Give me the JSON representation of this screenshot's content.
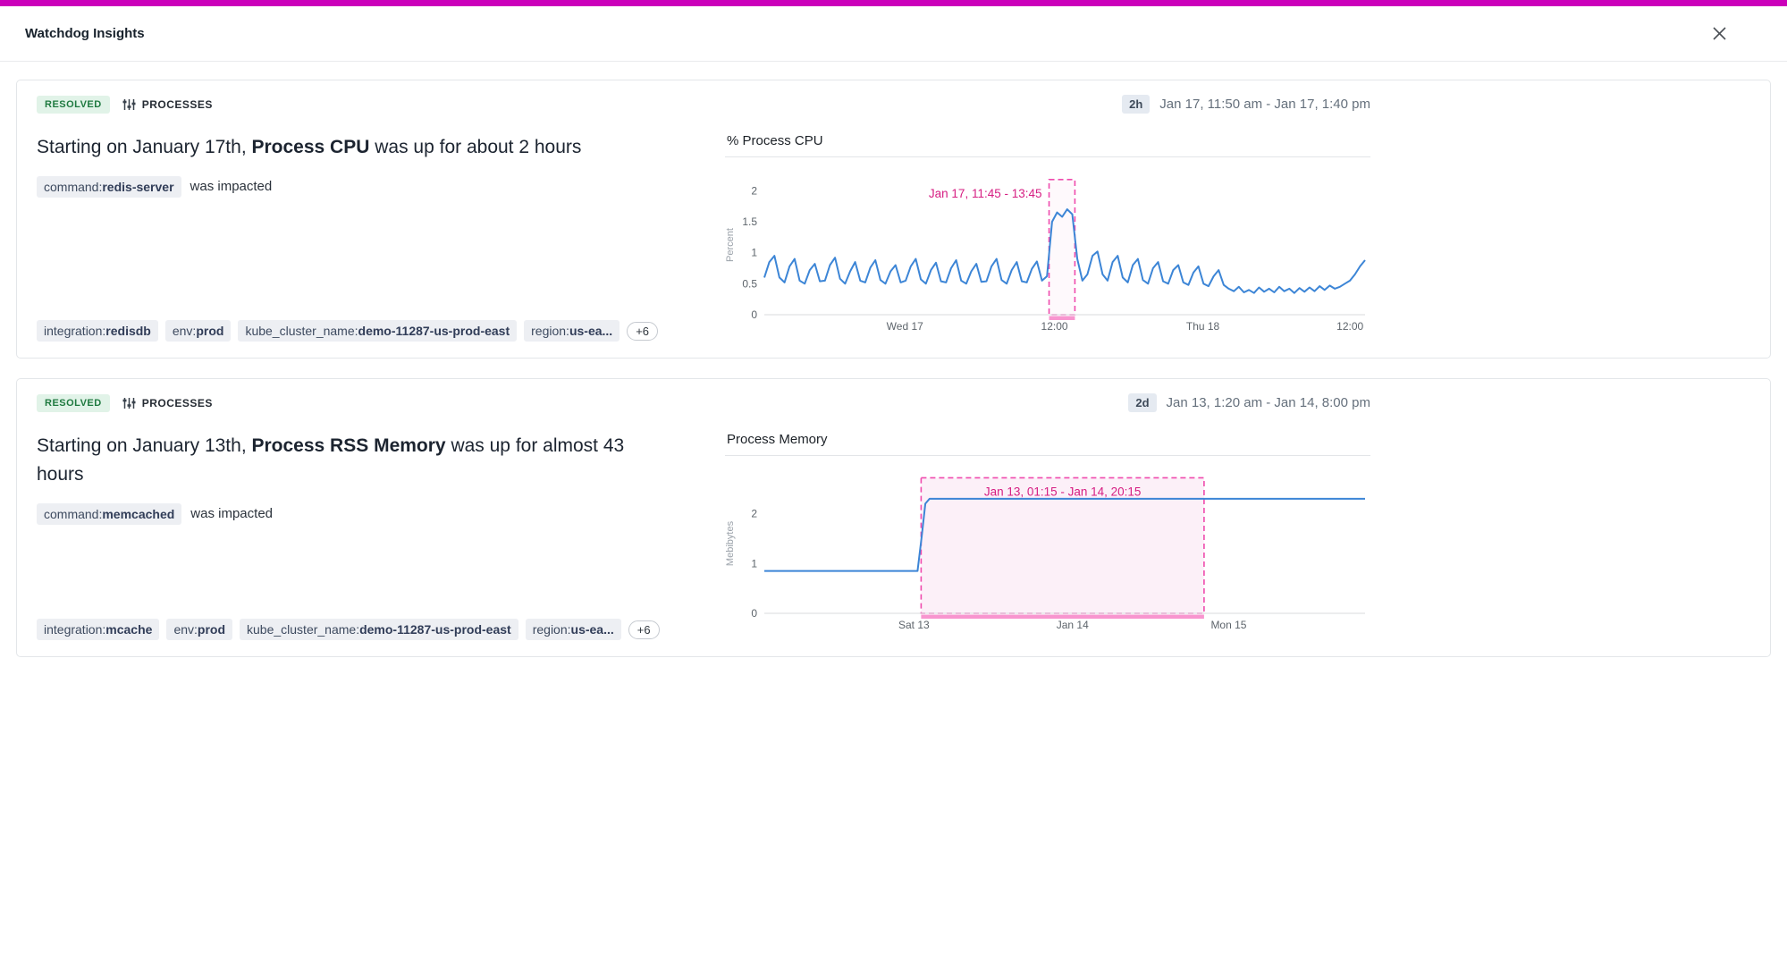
{
  "colors": {
    "accent_bar": "#cb00ba",
    "line_blue": "#3c85d6",
    "pink_stroke": "#ef4aad",
    "pink_text": "#d61d82",
    "pink_bar": "#f895cf",
    "resolved_green": "#1f7a40"
  },
  "header": {
    "title": "Watchdog Insights"
  },
  "cards": [
    {
      "status": "RESOLVED",
      "category": "PROCESSES",
      "duration": "2h",
      "time_range": "Jan 17, 11:50 am - Jan 17, 1:40 pm",
      "title": {
        "prefix": "Starting on January 17th, ",
        "emphasis": "Process CPU",
        "suffix": " was up for about 2 hours"
      },
      "impacted": {
        "tag_key": "command:",
        "tag_value": "redis-server",
        "text": "was impacted"
      },
      "tags": [
        {
          "key": "integration:",
          "value": "redisdb"
        },
        {
          "key": "env:",
          "value": "prod"
        },
        {
          "key": "kube_cluster_name:",
          "value": "demo-11287-us-prod-east"
        },
        {
          "key": "region:",
          "value": "us-ea..."
        }
      ],
      "more_count": "+6",
      "chart_data": {
        "type": "line",
        "title": "% Process CPU",
        "ylabel": "Percent",
        "ylim": [
          0,
          2.25
        ],
        "yticks": [
          0,
          0.5,
          1,
          1.5,
          2
        ],
        "xticks": [
          {
            "pos": 0.234,
            "label": "Wed 17"
          },
          {
            "pos": 0.483,
            "label": "12:00"
          },
          {
            "pos": 0.73,
            "label": "Thu 18"
          },
          {
            "pos": 0.975,
            "label": "12:00"
          }
        ],
        "annotation": {
          "label": "Jan 17, 11:45 - 13:45",
          "x0": 0.474,
          "x1": 0.517,
          "top": 2.18,
          "align": "end",
          "fill": "rgba(252,233,244,0.25)",
          "stroke": "#ef4aad",
          "bar": "#f895cf"
        },
        "series": {
          "color": "#3c85d6",
          "y": [
            0.6,
            0.85,
            0.95,
            0.6,
            0.52,
            0.78,
            0.9,
            0.55,
            0.5,
            0.72,
            0.82,
            0.54,
            0.55,
            0.8,
            0.92,
            0.58,
            0.5,
            0.7,
            0.85,
            0.55,
            0.52,
            0.76,
            0.88,
            0.56,
            0.5,
            0.7,
            0.8,
            0.52,
            0.55,
            0.78,
            0.9,
            0.57,
            0.5,
            0.72,
            0.84,
            0.54,
            0.52,
            0.75,
            0.88,
            0.55,
            0.5,
            0.7,
            0.82,
            0.53,
            0.54,
            0.78,
            0.9,
            0.56,
            0.5,
            0.72,
            0.85,
            0.54,
            0.52,
            0.74,
            0.86,
            0.55,
            0.62,
            1.5,
            1.65,
            1.58,
            1.7,
            1.62,
            0.9,
            0.55,
            0.65,
            0.95,
            1.02,
            0.65,
            0.55,
            0.85,
            0.95,
            0.6,
            0.52,
            0.8,
            0.9,
            0.56,
            0.5,
            0.75,
            0.85,
            0.54,
            0.5,
            0.72,
            0.8,
            0.52,
            0.48,
            0.68,
            0.78,
            0.5,
            0.46,
            0.62,
            0.72,
            0.48,
            0.42,
            0.38,
            0.45,
            0.36,
            0.4,
            0.35,
            0.44,
            0.37,
            0.42,
            0.36,
            0.45,
            0.38,
            0.42,
            0.35,
            0.43,
            0.37,
            0.44,
            0.38,
            0.46,
            0.4,
            0.47,
            0.42,
            0.45,
            0.5,
            0.55,
            0.65,
            0.78,
            0.88
          ]
        }
      }
    },
    {
      "status": "RESOLVED",
      "category": "PROCESSES",
      "duration": "2d",
      "time_range": "Jan 13, 1:20 am - Jan 14, 8:00 pm",
      "title": {
        "prefix": "Starting on January 13th, ",
        "emphasis": "Process RSS Memory",
        "suffix": " was up for almost 43 hours"
      },
      "impacted": {
        "tag_key": "command:",
        "tag_value": "memcached",
        "text": "was impacted"
      },
      "tags": [
        {
          "key": "integration:",
          "value": "mcache"
        },
        {
          "key": "env:",
          "value": "prod"
        },
        {
          "key": "kube_cluster_name:",
          "value": "demo-11287-us-prod-east"
        },
        {
          "key": "region:",
          "value": "us-ea..."
        }
      ],
      "more_count": "+6",
      "chart_data": {
        "type": "line",
        "title": "Process Memory",
        "ylabel": "Mebibytes",
        "ylim": [
          0,
          2.8
        ],
        "yticks": [
          0,
          1,
          2
        ],
        "xticks": [
          {
            "pos": 0.249,
            "label": "Sat 13"
          },
          {
            "pos": 0.513,
            "label": "Jan 14"
          },
          {
            "pos": 0.773,
            "label": "Mon 15"
          }
        ],
        "annotation": {
          "label": "Jan 13, 01:15 - Jan 14, 20:15",
          "x0": 0.261,
          "x1": 0.732,
          "top": 2.72,
          "align": "middle",
          "fill": "#fcf0f8",
          "stroke": "#ef4aad",
          "bar": "#f895cf"
        },
        "series": {
          "color": "#3c85d6",
          "x": [
            0,
            0.05,
            0.1,
            0.15,
            0.2,
            0.255,
            0.262,
            0.268,
            0.275,
            0.35,
            0.5,
            0.65,
            0.732,
            0.85,
            1.0
          ],
          "y": [
            0.85,
            0.85,
            0.85,
            0.85,
            0.85,
            0.85,
            1.55,
            2.2,
            2.3,
            2.3,
            2.3,
            2.3,
            2.3,
            2.3,
            2.3
          ]
        }
      }
    }
  ]
}
